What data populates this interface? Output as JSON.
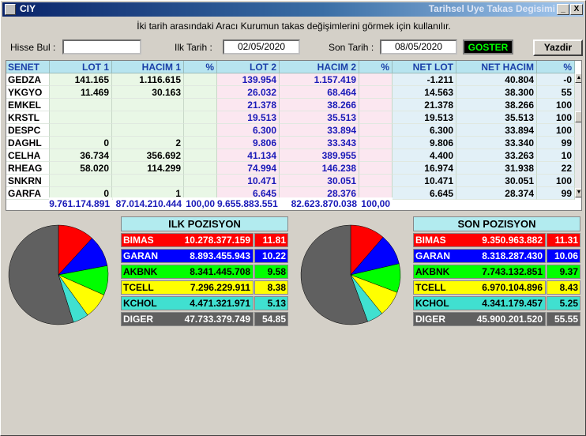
{
  "window": {
    "title": "CIY",
    "subtitle": "Tarihsel Uye Takas Degisimi",
    "minimize": "_",
    "close": "X"
  },
  "hint": "İki tarih arasındaki  Aracı Kurumun takas değişimlerini görmek için kullanılır.",
  "form": {
    "hisse_label": "Hisse Bul :",
    "hisse_value": "",
    "ilk_label": "Ilk Tarih :",
    "ilk_value": "02/05/2020",
    "son_label": "Son Tarih :",
    "son_value": "08/05/2020",
    "goster": "GOSTER",
    "yazdir": "Yazdir"
  },
  "table": {
    "headers": [
      "SENET",
      "LOT 1",
      "HACIM 1",
      "%",
      "LOT 2",
      "HACIM 2",
      "%",
      "NET LOT",
      "NET HACIM",
      "%"
    ],
    "rows": [
      [
        "GEDZA",
        "141.165",
        "1.116.615",
        "",
        "139.954",
        "1.157.419",
        "",
        "-1.211",
        "40.804",
        "-0"
      ],
      [
        "YKGYO",
        "11.469",
        "30.163",
        "",
        "26.032",
        "68.464",
        "",
        "14.563",
        "38.300",
        "55"
      ],
      [
        "EMKEL",
        "",
        "",
        "",
        "21.378",
        "38.266",
        "",
        "21.378",
        "38.266",
        "100"
      ],
      [
        "KRSTL",
        "",
        "",
        "",
        "19.513",
        "35.513",
        "",
        "19.513",
        "35.513",
        "100"
      ],
      [
        "DESPC",
        "",
        "",
        "",
        "6.300",
        "33.894",
        "",
        "6.300",
        "33.894",
        "100"
      ],
      [
        "DAGHL",
        "0",
        "2",
        "",
        "9.806",
        "33.343",
        "",
        "9.806",
        "33.340",
        "99"
      ],
      [
        "CELHA",
        "36.734",
        "356.692",
        "",
        "41.134",
        "389.955",
        "",
        "4.400",
        "33.263",
        "10"
      ],
      [
        "RHEAG",
        "58.020",
        "114.299",
        "",
        "74.994",
        "146.238",
        "",
        "16.974",
        "31.938",
        "22"
      ],
      [
        "SNKRN",
        "",
        "",
        "",
        "10.471",
        "30.051",
        "",
        "10.471",
        "30.051",
        "100"
      ],
      [
        "GARFA",
        "0",
        "1",
        "",
        "6.645",
        "28.376",
        "",
        "6.645",
        "28.374",
        "99"
      ]
    ],
    "totals": [
      "9.761.174.891",
      "87.014.210.444",
      "100,00",
      "9.655.883.551",
      "82.623.870.038",
      "100,00"
    ]
  },
  "ilk": {
    "title": "ILK POZISYON",
    "rows": [
      {
        "name": "BIMAS",
        "value": "10.278.377.159",
        "pct": "11.81"
      },
      {
        "name": "GARAN",
        "value": "8.893.455.943",
        "pct": "10.22"
      },
      {
        "name": "AKBNK",
        "value": "8.341.445.708",
        "pct": "9.58"
      },
      {
        "name": "TCELL",
        "value": "7.296.229.911",
        "pct": "8.38"
      },
      {
        "name": "KCHOL",
        "value": "4.471.321.971",
        "pct": "5.13"
      },
      {
        "name": "DIGER",
        "value": "47.733.379.749",
        "pct": "54.85"
      }
    ]
  },
  "son": {
    "title": "SON POZISYON",
    "rows": [
      {
        "name": "BIMAS",
        "value": "9.350.963.882",
        "pct": "11.31"
      },
      {
        "name": "GARAN",
        "value": "8.318.287.430",
        "pct": "10.06"
      },
      {
        "name": "AKBNK",
        "value": "7.743.132.851",
        "pct": "9.37"
      },
      {
        "name": "TCELL",
        "value": "6.970.104.896",
        "pct": "8.43"
      },
      {
        "name": "KCHOL",
        "value": "4.341.179.457",
        "pct": "5.25"
      },
      {
        "name": "DIGER",
        "value": "45.900.201.520",
        "pct": "55.55"
      }
    ]
  },
  "colors": {
    "BIMAS": "#ff0000",
    "GARAN": "#0000ff",
    "AKBNK": "#00ff00",
    "TCELL": "#ffff00",
    "KCHOL": "#40e0d0",
    "DIGER": "#606060"
  },
  "textcolors": {
    "BIMAS": "#ffffff",
    "GARAN": "#ffffff",
    "AKBNK": "#000000",
    "TCELL": "#000000",
    "KCHOL": "#000000",
    "DIGER": "#ffffff"
  }
}
